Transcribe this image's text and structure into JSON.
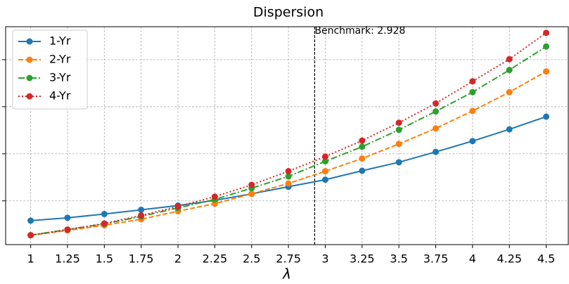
{
  "chart_data": {
    "type": "line",
    "title": "Dispersion",
    "x_label": "λ",
    "x": [
      1,
      1.25,
      1.5,
      1.75,
      2,
      2.25,
      2.5,
      2.75,
      3,
      3.25,
      3.5,
      3.75,
      4,
      4.25,
      4.5
    ],
    "xlim": [
      0.83,
      4.65
    ],
    "xticks": [
      1,
      1.25,
      1.5,
      1.75,
      2,
      2.25,
      2.5,
      2.75,
      3,
      3.25,
      3.5,
      3.75,
      4,
      4.25,
      4.5
    ],
    "ylim": [
      0.07,
      4.7
    ],
    "yticks": [
      1,
      2,
      3,
      4
    ],
    "grid": true,
    "legend": "upper-left",
    "benchmark": {
      "value": 2.928,
      "label": "Benchmark: 2.928"
    },
    "series": [
      {
        "name": "1-Yr",
        "color": "#1f77b4",
        "dash": "solid",
        "values": [
          0.58,
          0.64,
          0.72,
          0.81,
          0.9,
          1.01,
          1.15,
          1.3,
          1.45,
          1.64,
          1.82,
          2.04,
          2.27,
          2.52,
          2.79
        ]
      },
      {
        "name": "2-Yr",
        "color": "#ff7f0e",
        "dash": "dashed",
        "values": [
          0.27,
          0.37,
          0.48,
          0.61,
          0.78,
          0.94,
          1.15,
          1.37,
          1.63,
          1.9,
          2.21,
          2.54,
          2.91,
          3.31,
          3.75
        ]
      },
      {
        "name": "3-Yr",
        "color": "#2ca02c",
        "dash": "dashdot",
        "values": [
          0.27,
          0.39,
          0.51,
          0.67,
          0.85,
          1.03,
          1.27,
          1.52,
          1.84,
          2.15,
          2.51,
          2.9,
          3.31,
          3.78,
          4.28
        ]
      },
      {
        "name": "4-Yr",
        "color": "#d62728",
        "dash": "dotted",
        "values": [
          0.27,
          0.39,
          0.52,
          0.69,
          0.88,
          1.09,
          1.34,
          1.63,
          1.94,
          2.28,
          2.66,
          3.07,
          3.54,
          4.01,
          4.57
        ]
      }
    ]
  }
}
